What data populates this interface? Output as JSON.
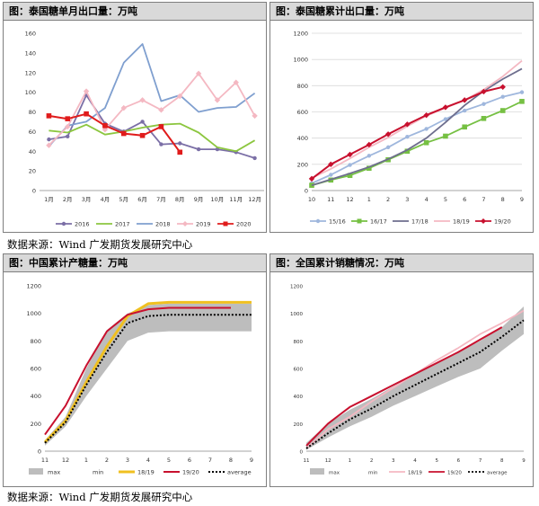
{
  "source_text": "数据来源：Wind 广发期货发展研究中心",
  "colors": {
    "s2016": "#7b6fa6",
    "s2017": "#8cc63f",
    "s2018": "#7f9fcf",
    "s2019": "#f4b8c2",
    "s2020": "#e01b1b",
    "s1516": "#9fb7dd",
    "s1617": "#76c043",
    "s1718": "#6e6e8e",
    "s1819": "#f4b8c2",
    "s1920": "#c8102e",
    "band": "#bdbdbd",
    "mn": "#f0c020",
    "avg": "#000000"
  },
  "chart_data": [
    {
      "type": "line",
      "title": "图：泰国糖单月出口量：万吨",
      "categories": [
        "1月",
        "2月",
        "3月",
        "4月",
        "5月",
        "6月",
        "7月",
        "8月",
        "9月",
        "10月",
        "11月",
        "12月"
      ],
      "ylim": [
        0,
        160
      ],
      "yticks": [
        0,
        20,
        40,
        60,
        80,
        100,
        120,
        140,
        160
      ],
      "series": [
        {
          "name": "2016",
          "values": [
            52,
            55,
            97,
            68,
            60,
            70,
            47,
            48,
            42,
            42,
            39,
            33
          ]
        },
        {
          "name": "2017",
          "values": [
            61,
            59,
            67,
            57,
            60,
            64,
            67,
            68,
            59,
            44,
            40,
            51
          ]
        },
        {
          "name": "2018",
          "values": [
            45,
            66,
            70,
            84,
            130,
            149,
            91,
            97,
            80,
            84,
            85,
            99
          ]
        },
        {
          "name": "2019",
          "values": [
            46,
            65,
            101,
            62,
            84,
            92,
            82,
            96,
            119,
            92,
            110,
            76
          ]
        },
        {
          "name": "2020",
          "values": [
            76,
            73,
            78,
            66,
            58,
            56,
            65,
            39,
            null,
            null,
            null,
            null
          ]
        }
      ]
    },
    {
      "type": "line",
      "title": "图：泰国糖累计出口量：万吨",
      "categories": [
        "10",
        "11",
        "12",
        "1",
        "2",
        "3",
        "4",
        "5",
        "6",
        "7",
        "8",
        "9"
      ],
      "ylim": [
        0,
        1200
      ],
      "yticks": [
        0,
        200,
        400,
        600,
        800,
        1000,
        1200
      ],
      "series": [
        {
          "name": "15/16",
          "values": [
            55,
            120,
            195,
            265,
            330,
            410,
            470,
            545,
            610,
            660,
            715,
            750
          ]
        },
        {
          "name": "16/17",
          "values": [
            40,
            80,
            115,
            170,
            235,
            300,
            365,
            415,
            485,
            550,
            610,
            680
          ]
        },
        {
          "name": "17/18",
          "values": [
            40,
            85,
            130,
            180,
            240,
            310,
            400,
            520,
            650,
            760,
            850,
            930
          ]
        },
        {
          "name": "18/19",
          "values": [
            95,
            165,
            245,
            330,
            405,
            490,
            570,
            630,
            690,
            770,
            870,
            990
          ]
        },
        {
          "name": "19/20",
          "values": [
            90,
            200,
            275,
            350,
            430,
            505,
            575,
            635,
            690,
            755,
            790,
            null
          ]
        }
      ]
    },
    {
      "type": "area",
      "title": "图：中国累计产糖量：万吨",
      "categories": [
        "11",
        "12",
        "1",
        "2",
        "3",
        "4",
        "5",
        "6",
        "7",
        "8",
        "9"
      ],
      "ylim": [
        0,
        1200
      ],
      "yticks": [
        0,
        200,
        400,
        600,
        800,
        1000,
        1200
      ],
      "series": [
        {
          "name": "max",
          "values": [
            80,
            250,
            600,
            880,
            1000,
            1060,
            1070,
            1070,
            1070,
            1070,
            1070
          ]
        },
        {
          "name": "min",
          "values": [
            40,
            180,
            400,
            600,
            800,
            860,
            870,
            870,
            870,
            870,
            870
          ]
        },
        {
          "name": "18/19",
          "values": [
            65,
            220,
            500,
            760,
            980,
            1070,
            1080,
            1080,
            1080,
            1080,
            1080
          ]
        },
        {
          "name": "19/20",
          "values": [
            120,
            330,
            620,
            870,
            990,
            1030,
            1040,
            1040,
            1040,
            1040,
            null
          ]
        },
        {
          "name": "average",
          "values": [
            60,
            210,
            480,
            720,
            930,
            980,
            990,
            990,
            990,
            990,
            990
          ]
        }
      ]
    },
    {
      "type": "area",
      "title": "图：全国累计销糖情况：万吨",
      "categories": [
        "11",
        "12",
        "1",
        "2",
        "3",
        "4",
        "5",
        "6",
        "7",
        "8",
        "9"
      ],
      "ylim": [
        0,
        1200
      ],
      "yticks": [
        0,
        200,
        400,
        600,
        800,
        1000,
        1200
      ],
      "series": [
        {
          "name": "max",
          "values": [
            60,
            200,
            300,
            380,
            470,
            560,
            640,
            720,
            800,
            900,
            1050
          ]
        },
        {
          "name": "min",
          "values": [
            10,
            100,
            180,
            250,
            330,
            400,
            470,
            540,
            600,
            730,
            850
          ]
        },
        {
          "name": "18/19",
          "values": [
            20,
            160,
            250,
            360,
            460,
            560,
            660,
            750,
            850,
            930,
            1020
          ]
        },
        {
          "name": "19/20",
          "values": [
            40,
            200,
            320,
            400,
            480,
            560,
            640,
            720,
            810,
            900,
            null
          ]
        },
        {
          "name": "average",
          "values": [
            20,
            130,
            230,
            310,
            400,
            480,
            560,
            640,
            720,
            830,
            950
          ]
        }
      ]
    }
  ]
}
